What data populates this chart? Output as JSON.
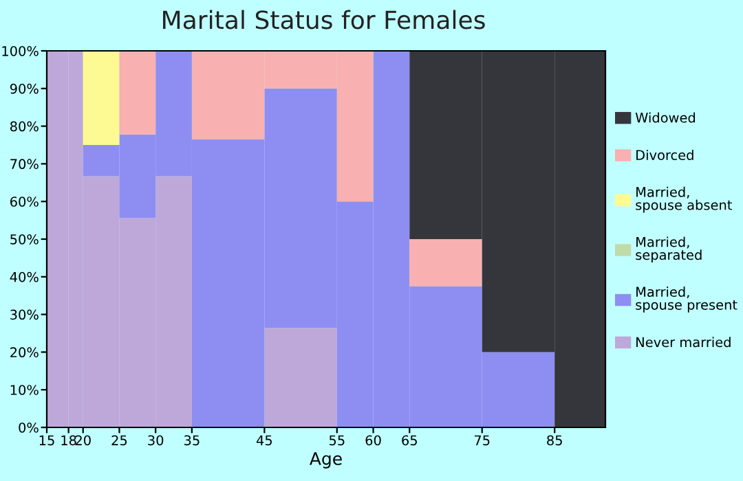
{
  "chart_data": {
    "type": "bar",
    "stacked": true,
    "title": "Marital Status for Females",
    "xlabel": "Age",
    "x": [
      16.5,
      19,
      22.5,
      27.5,
      32.5,
      40,
      50,
      57.5,
      62.5,
      70,
      80,
      88.5
    ],
    "series": [
      {
        "name": "Never married",
        "color": "#bea8da",
        "values": [
          100,
          100,
          66.7,
          55.6,
          66.7,
          0,
          26.4,
          0,
          0,
          0,
          0,
          0
        ]
      },
      {
        "name": "Married, spouse present",
        "color": "#8e8ef2",
        "values": [
          0,
          0,
          8.3,
          22.2,
          33.3,
          76.5,
          63.6,
          60,
          100,
          37.5,
          20,
          0
        ]
      },
      {
        "name": "Married, separated",
        "color": "#c0dba8",
        "values": [
          0,
          0,
          0,
          0,
          0,
          0,
          0,
          0,
          0,
          0,
          0,
          0
        ]
      },
      {
        "name": "Married, spouse absent",
        "color": "#fdf993",
        "values": [
          0,
          0,
          25,
          0,
          0,
          0,
          0,
          0,
          0,
          0,
          0,
          0
        ]
      },
      {
        "name": "Divorced",
        "color": "#f8b0b0",
        "values": [
          0,
          0,
          0,
          22.2,
          0,
          23.5,
          10,
          40,
          0,
          12.5,
          0,
          0
        ]
      },
      {
        "name": "Widowed",
        "color": "#35363c",
        "values": [
          0,
          0,
          0,
          0,
          0,
          0,
          0,
          0,
          0,
          50,
          80,
          100
        ]
      }
    ],
    "xlim": [
      15,
      92
    ],
    "xticks": [
      15,
      18,
      20,
      25,
      30,
      35,
      45,
      55,
      60,
      65,
      75,
      85
    ],
    "ylim": [
      0,
      100
    ],
    "yticks": [
      {
        "value": 0,
        "label": "0%"
      },
      {
        "value": 10,
        "label": "10%"
      },
      {
        "value": 20,
        "label": "20%"
      },
      {
        "value": 30,
        "label": "30%"
      },
      {
        "value": 40,
        "label": "40%"
      },
      {
        "value": 50,
        "label": "50%"
      },
      {
        "value": 60,
        "label": "60%"
      },
      {
        "value": 70,
        "label": "70%"
      },
      {
        "value": 80,
        "label": "80%"
      },
      {
        "value": 90,
        "label": "90%"
      },
      {
        "value": 100,
        "label": "100%"
      }
    ],
    "grid": false,
    "legend": "right"
  }
}
